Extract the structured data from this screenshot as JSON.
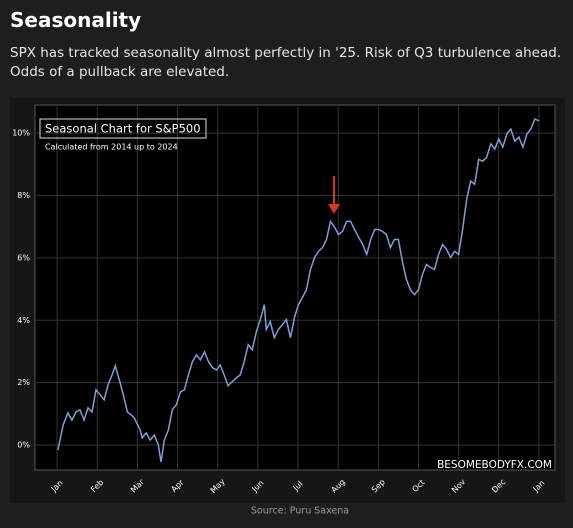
{
  "header": {
    "title": "Seasonality",
    "subtitle": "SPX has tracked seasonality almost perfectly in '25. Risk of Q3 turbulence ahead. Odds of a pullback are elevated."
  },
  "chart_data": {
    "type": "line",
    "title": "Seasonal Chart for S&P500",
    "subtitle": "Calculated from 2014 up to 2024",
    "watermark": "BESOMEBODYFX.COM",
    "color": "#7d9fd8",
    "grid": true,
    "x": [
      0.02,
      0.15,
      0.27,
      0.37,
      0.47,
      0.57,
      0.67,
      0.77,
      0.87,
      0.97,
      1.07,
      1.17,
      1.27,
      1.37,
      1.45,
      1.55,
      1.65,
      1.75,
      1.85,
      1.92,
      2.07,
      2.12,
      2.22,
      2.32,
      2.42,
      2.52,
      2.59,
      2.67,
      2.77,
      2.87,
      2.97,
      3.07,
      3.17,
      3.27,
      3.37,
      3.47,
      3.57,
      3.67,
      3.77,
      3.87,
      3.97,
      4.06,
      4.16,
      4.26,
      4.36,
      4.46,
      4.56,
      4.66,
      4.76,
      4.86,
      4.96,
      5.06,
      5.16,
      5.21,
      5.31,
      5.41,
      5.51,
      5.61,
      5.71,
      5.81,
      5.91,
      6.01,
      6.11,
      6.21,
      6.31,
      6.41,
      6.51,
      6.61,
      6.71,
      6.81,
      6.91,
      7.01,
      7.11,
      7.21,
      7.31,
      7.41,
      7.51,
      7.61,
      7.71,
      7.81,
      7.91,
      8.0,
      8.1,
      8.2,
      8.3,
      8.4,
      8.5,
      8.6,
      8.7,
      8.8,
      8.9,
      9.0,
      9.1,
      9.2,
      9.3,
      9.4,
      9.5,
      9.6,
      9.7,
      9.8,
      9.9,
      10.0,
      10.1,
      10.2,
      10.3,
      10.4,
      10.5,
      10.6,
      10.7,
      10.8,
      10.9,
      11.0,
      11.1,
      11.2,
      11.3,
      11.4,
      11.5,
      11.6,
      11.7,
      11.8,
      11.9,
      12.0
    ],
    "values": [
      -0.16,
      0.64,
      1.03,
      0.8,
      1.06,
      1.13,
      0.8,
      1.19,
      1.06,
      1.77,
      1.61,
      1.45,
      1.93,
      2.25,
      2.54,
      2.09,
      1.61,
      1.06,
      0.96,
      0.87,
      0.48,
      0.23,
      0.39,
      0.16,
      0.32,
      0,
      -0.55,
      0.16,
      0.48,
      1.13,
      1.29,
      1.7,
      1.77,
      2.25,
      2.67,
      2.89,
      2.73,
      2.99,
      2.67,
      2.48,
      2.41,
      2.57,
      2.25,
      1.9,
      2.03,
      2.15,
      2.25,
      2.67,
      3.22,
      3.05,
      3.63,
      4.02,
      4.5,
      3.7,
      3.95,
      3.44,
      3.7,
      3.86,
      4.02,
      3.44,
      4.08,
      4.5,
      4.73,
      4.98,
      5.63,
      6.01,
      6.21,
      6.33,
      6.59,
      7.17,
      6.98,
      6.75,
      6.85,
      7.17,
      7.17,
      6.91,
      6.66,
      6.43,
      6.11,
      6.59,
      6.91,
      6.91,
      6.85,
      6.75,
      6.33,
      6.59,
      6.59,
      5.88,
      5.31,
      4.98,
      4.82,
      4.98,
      5.47,
      5.79,
      5.69,
      5.63,
      6.11,
      6.43,
      6.27,
      6.01,
      6.21,
      6.11,
      6.91,
      7.88,
      8.46,
      8.36,
      9.16,
      9.1,
      9.23,
      9.65,
      9.49,
      9.81,
      9.55,
      9.97,
      10.13,
      9.74,
      9.87,
      9.55,
      9.97,
      10.13,
      10.45,
      10.39
    ],
    "xlim": [
      -0.55,
      12.4
    ],
    "xticks": [
      {
        "value": 0,
        "label": "Jan"
      },
      {
        "value": 1,
        "label": "Feb"
      },
      {
        "value": 2,
        "label": "Mar"
      },
      {
        "value": 3,
        "label": "Apr"
      },
      {
        "value": 4,
        "label": "May"
      },
      {
        "value": 5,
        "label": "Jun"
      },
      {
        "value": 6,
        "label": "Jul"
      },
      {
        "value": 7,
        "label": "Aug"
      },
      {
        "value": 8,
        "label": "Sep"
      },
      {
        "value": 9,
        "label": "Oct"
      },
      {
        "value": 10,
        "label": "Nov"
      },
      {
        "value": 11,
        "label": "Dec"
      },
      {
        "value": 12,
        "label": "Jan"
      }
    ],
    "ylim": [
      -0.8,
      10.9
    ],
    "yticks": [
      {
        "value": 0,
        "label": "0%"
      },
      {
        "value": 2,
        "label": "2%"
      },
      {
        "value": 4,
        "label": "4%"
      },
      {
        "value": 6,
        "label": "6%"
      },
      {
        "value": 8,
        "label": "8%"
      },
      {
        "value": 10,
        "label": "10%"
      }
    ]
  },
  "source": "Source: Puru Saxena"
}
